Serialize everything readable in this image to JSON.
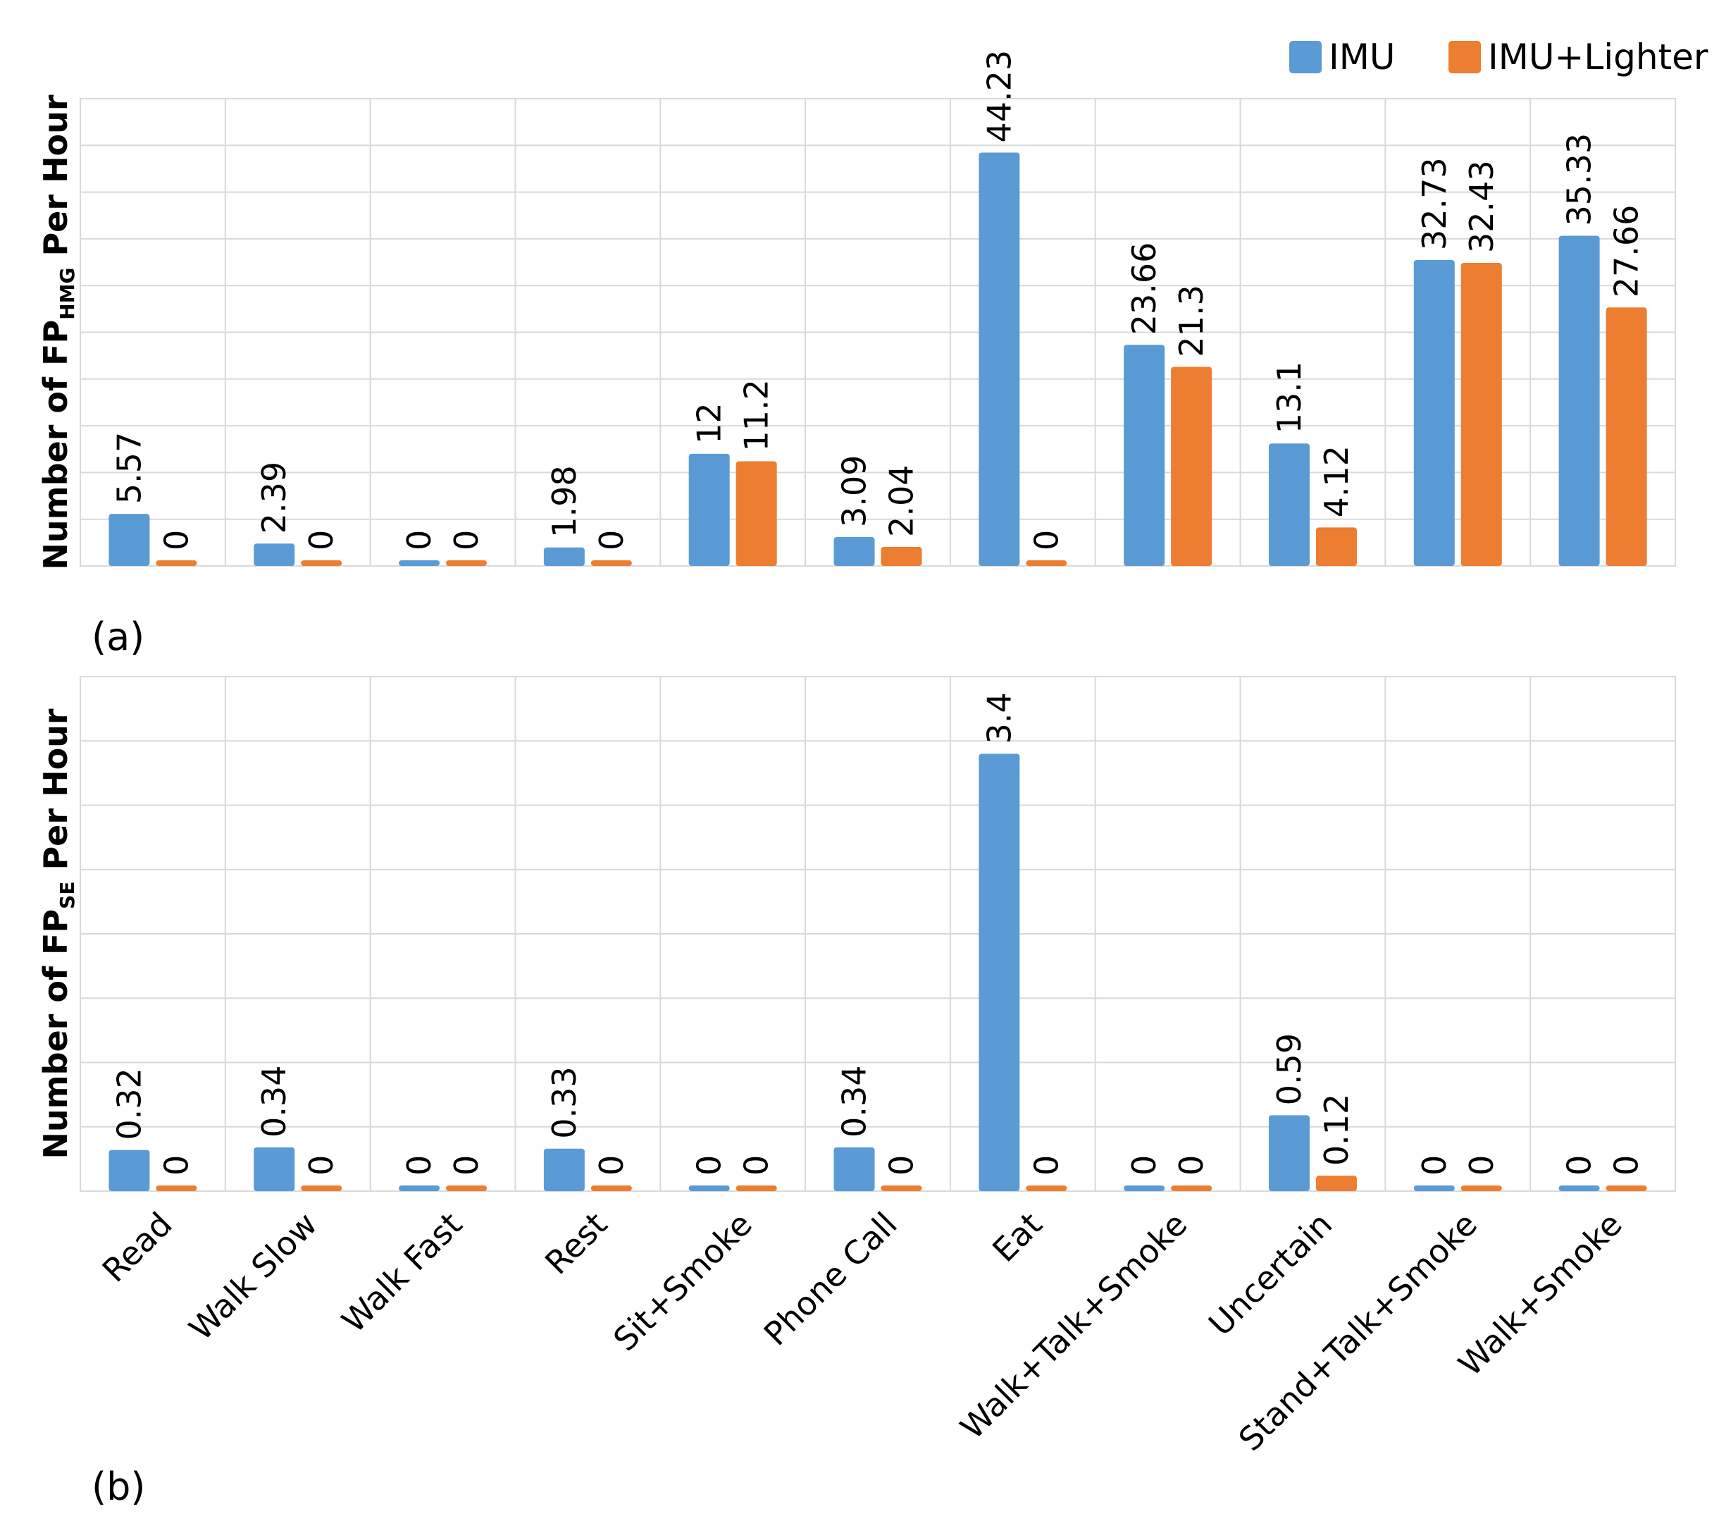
{
  "chart_data": [
    {
      "type": "bar",
      "panel_label": "(a)",
      "ylabel_prefix": "Number of FP",
      "ylabel_subscript": "HMG",
      "ylabel_suffix": " Per Hour",
      "ylim": [
        0,
        50
      ],
      "ytick_step": 5,
      "grid": true,
      "legend_position": "top-right",
      "categories": [
        "Read",
        "Walk Slow",
        "Walk Fast",
        "Rest",
        "Sit+Smoke",
        "Phone Call",
        "Eat",
        "Walk+Talk+Smoke",
        "Uncertain",
        "Stand+Talk+Smoke",
        "Walk+Smoke"
      ],
      "series": [
        {
          "name": "IMU",
          "color": "#5b9bd5",
          "values": [
            5.57,
            2.39,
            0,
            1.98,
            12,
            3.09,
            44.23,
            23.66,
            13.1,
            32.73,
            35.33
          ]
        },
        {
          "name": "IMU+Lighter",
          "color": "#ed7d31",
          "values": [
            0,
            0,
            0,
            0,
            11.2,
            2.04,
            0,
            21.3,
            4.12,
            32.43,
            27.66
          ]
        }
      ]
    },
    {
      "type": "bar",
      "panel_label": "(b)",
      "ylabel_prefix": "Number of FP",
      "ylabel_subscript": "SE",
      "ylabel_suffix": " Per Hour",
      "ylim": [
        0,
        4
      ],
      "ytick_step": 0.5,
      "grid": true,
      "categories": [
        "Read",
        "Walk Slow",
        "Walk Fast",
        "Rest",
        "Sit+Smoke",
        "Phone Call",
        "Eat",
        "Walk+Talk+Smoke",
        "Uncertain",
        "Stand+Talk+Smoke",
        "Walk+Smoke"
      ],
      "series": [
        {
          "name": "IMU",
          "color": "#5b9bd5",
          "values": [
            0.32,
            0.34,
            0,
            0.33,
            0,
            0.34,
            3.4,
            0,
            0.59,
            0,
            0
          ]
        },
        {
          "name": "IMU+Lighter",
          "color": "#ed7d31",
          "values": [
            0,
            0,
            0,
            0,
            0,
            0,
            0,
            0,
            0.12,
            0,
            0
          ]
        }
      ]
    }
  ]
}
